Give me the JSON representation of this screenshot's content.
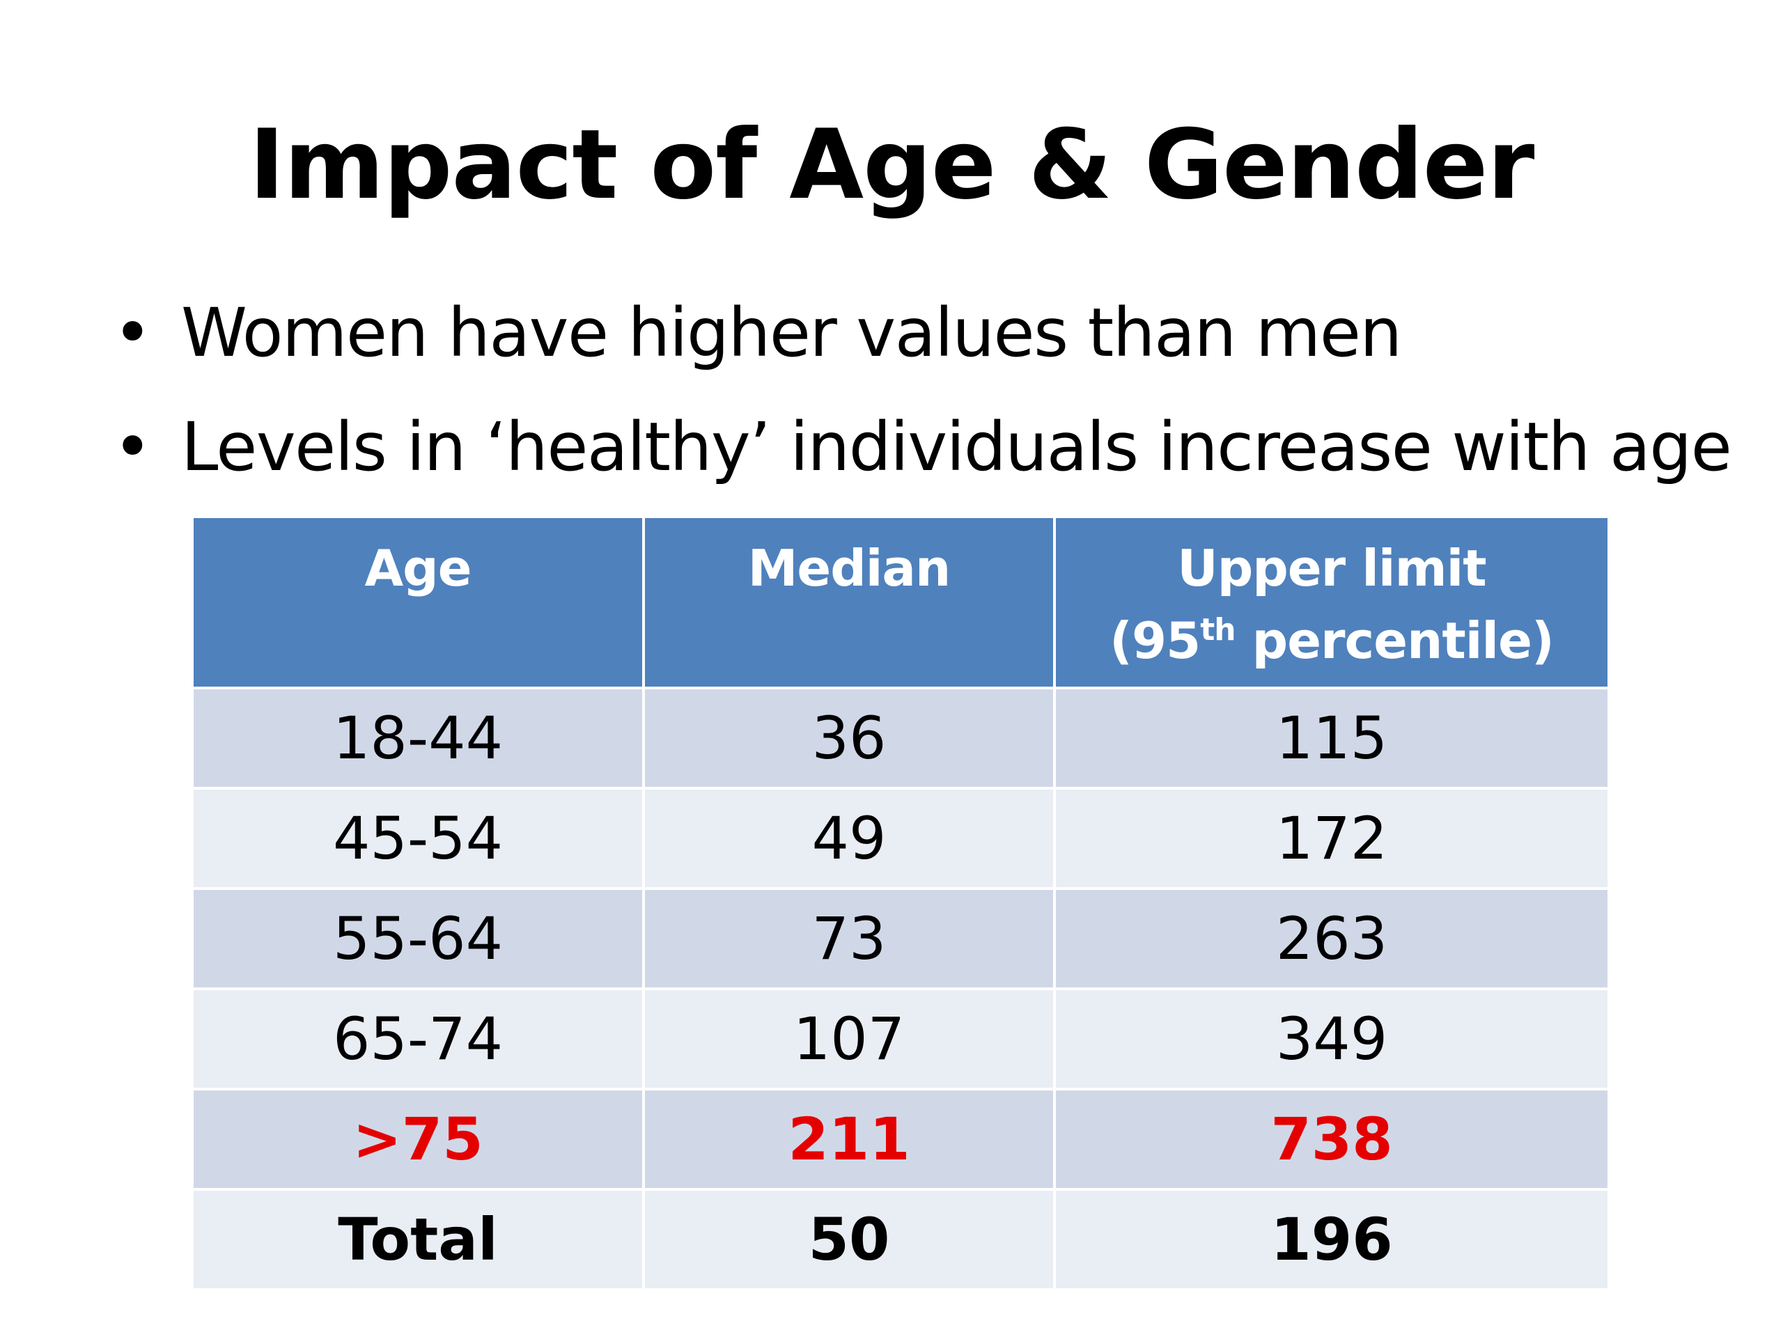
{
  "title": "Impact of Age & Gender",
  "bullets": [
    "Women have higher values than men",
    "Levels in ‘healthy’ individuals increase with age"
  ],
  "bullet_symbol": "•",
  "table": {
    "headers": {
      "age": "Age",
      "median": "Median",
      "upper_line1": "Upper limit",
      "upper_line2_pre": "(95",
      "upper_line2_sup": "th",
      "upper_line2_post": " percentile)"
    },
    "rows": [
      {
        "age": "18-44",
        "median": "36",
        "upper": "115"
      },
      {
        "age": "45-54",
        "median": "49",
        "upper": "172"
      },
      {
        "age": "55-64",
        "median": "73",
        "upper": "263"
      },
      {
        "age": "65-74",
        "median": "107",
        "upper": "349"
      },
      {
        "age": ">75",
        "median": "211",
        "upper": "738"
      },
      {
        "age": "Total",
        "median": "50",
        "upper": "196"
      }
    ],
    "colors": {
      "header_bg": "#4f81bd",
      "row_odd_bg": "#d0d8e8",
      "row_even_bg": "#e9edf4",
      "highlight_text": "#e50000"
    }
  }
}
